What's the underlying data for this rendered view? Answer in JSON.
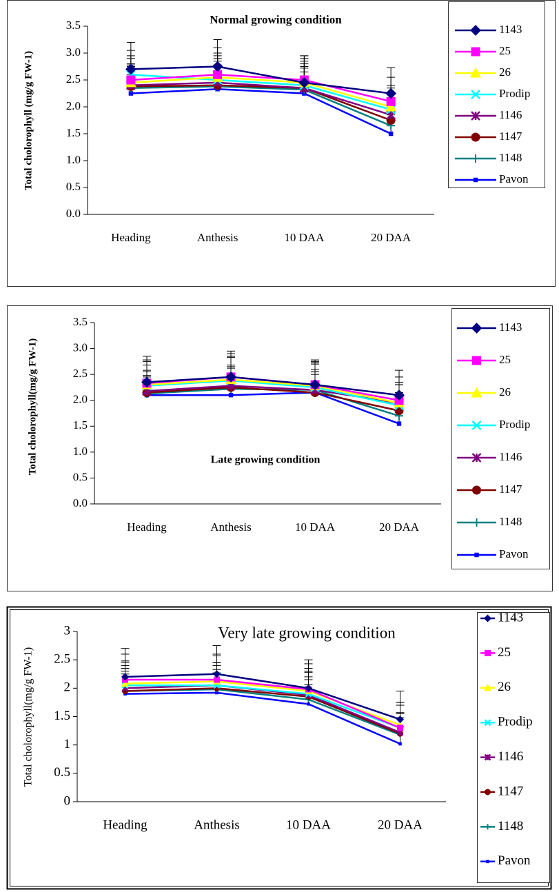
{
  "chart_data": [
    {
      "type": "line",
      "title": "Normal growing condition",
      "ylabel": "Total cholorophyll (mg/g FW-1)",
      "categories": [
        "Heading",
        "Anthesis",
        "10 DAA",
        "20 DAA"
      ],
      "ylim": [
        0,
        3.5
      ],
      "yticks": [
        {
          "value": 0,
          "label": "0.0"
        },
        0.5,
        {
          "value": 1,
          "label": "1.0"
        },
        1.5,
        {
          "value": 2,
          "label": "2.0"
        },
        2.5,
        {
          "value": 3,
          "label": "3.0"
        },
        3.5
      ],
      "series": [
        {
          "name": "1143",
          "color": "#000080",
          "marker": "diamond",
          "values": [
            2.7,
            2.75,
            2.45,
            2.25
          ],
          "errors": [
            0.5,
            0.5,
            0.5,
            0.48
          ]
        },
        {
          "name": "25",
          "color": "#ff00ff",
          "marker": "square",
          "values": [
            2.5,
            2.6,
            2.5,
            2.1
          ],
          "errors": [
            0.45,
            0.5,
            0.45,
            0.45
          ]
        },
        {
          "name": "26",
          "color": "#ffff00",
          "marker": "triangle",
          "values": [
            2.45,
            2.55,
            2.45,
            2.0
          ],
          "errors": [
            0.45,
            0.45,
            0.45,
            0.4
          ]
        },
        {
          "name": "Prodip",
          "color": "#00ffff",
          "marker": "x",
          "values": [
            2.6,
            2.5,
            2.4,
            1.95
          ],
          "errors": [
            0.45,
            0.45,
            0.45,
            0.4
          ]
        },
        {
          "name": "1146",
          "color": "#800080",
          "marker": "asterisk",
          "values": [
            2.4,
            2.45,
            2.35,
            1.85
          ],
          "errors": [
            0.4,
            0.45,
            0.45,
            0.4
          ]
        },
        {
          "name": "1147",
          "color": "#800000",
          "marker": "circle",
          "values": [
            2.38,
            2.4,
            2.35,
            1.75
          ],
          "errors": [
            0.4,
            0.45,
            0.4,
            0.4
          ]
        },
        {
          "name": "1148",
          "color": "#008080",
          "marker": "plus",
          "values": [
            2.35,
            2.38,
            2.32,
            1.65
          ],
          "errors": [
            0.4,
            0.4,
            0.4,
            0.35
          ]
        },
        {
          "name": "Pavon",
          "color": "#0000ff",
          "marker": "smallsquare",
          "values": [
            2.25,
            2.33,
            2.25,
            1.5
          ],
          "errors": [
            0.35,
            0.4,
            0.4,
            0.35
          ]
        }
      ]
    },
    {
      "type": "line",
      "title": "Late growing condition",
      "ylabel": "Total cholorophyll(mg/g FW-1)",
      "categories": [
        "Heading",
        "Anthesis",
        "10 DAA",
        "20 DAA"
      ],
      "ylim": [
        0,
        3.5
      ],
      "yticks": [
        {
          "value": 0,
          "label": "0.0"
        },
        0.5,
        {
          "value": 1,
          "label": "1.0"
        },
        1.5,
        {
          "value": 2,
          "label": "2.0"
        },
        2.5,
        {
          "value": 3,
          "label": "3.0"
        },
        3.5
      ],
      "series": [
        {
          "name": "1143",
          "color": "#000080",
          "marker": "diamond",
          "values": [
            2.35,
            2.45,
            2.3,
            2.1
          ],
          "errors": [
            0.5,
            0.5,
            0.48,
            0.48
          ]
        },
        {
          "name": "25",
          "color": "#ff00ff",
          "marker": "square",
          "values": [
            2.33,
            2.45,
            2.3,
            2.0
          ],
          "errors": [
            0.45,
            0.45,
            0.45,
            0.45
          ]
        },
        {
          "name": "26",
          "color": "#ffff00",
          "marker": "triangle",
          "values": [
            2.3,
            2.4,
            2.28,
            1.95
          ],
          "errors": [
            0.45,
            0.45,
            0.45,
            0.4
          ]
        },
        {
          "name": "Prodip",
          "color": "#00ffff",
          "marker": "x",
          "values": [
            2.28,
            2.38,
            2.25,
            1.9
          ],
          "errors": [
            0.4,
            0.45,
            0.45,
            0.4
          ]
        },
        {
          "name": "1146",
          "color": "#800080",
          "marker": "asterisk",
          "values": [
            2.18,
            2.28,
            2.2,
            1.95
          ],
          "errors": [
            0.4,
            0.4,
            0.4,
            0.35
          ]
        },
        {
          "name": "1147",
          "color": "#800000",
          "marker": "circle",
          "values": [
            2.15,
            2.25,
            2.15,
            1.8
          ],
          "errors": [
            0.4,
            0.4,
            0.4,
            0.35
          ]
        },
        {
          "name": "1148",
          "color": "#008080",
          "marker": "plus",
          "values": [
            2.13,
            2.22,
            2.2,
            1.7
          ],
          "errors": [
            0.35,
            0.4,
            0.35,
            0.35
          ]
        },
        {
          "name": "Pavon",
          "color": "#0000ff",
          "marker": "smallsquare",
          "values": [
            2.1,
            2.1,
            2.15,
            1.55
          ],
          "errors": [
            0.35,
            0.35,
            0.35,
            0.3
          ]
        }
      ]
    },
    {
      "type": "line",
      "title": "Very late growing condition",
      "ylabel": "Total cholorophyll(mg/g FW-1)",
      "categories": [
        "Heading",
        "Anthesis",
        "10 DAA",
        "20 DAA"
      ],
      "ylim": [
        0,
        3
      ],
      "yticks": [
        0,
        0.5,
        1,
        1.5,
        2,
        2.5,
        3
      ],
      "series": [
        {
          "name": "1143",
          "color": "#000080",
          "marker": "diamond",
          "values": [
            2.2,
            2.25,
            2.0,
            1.45
          ],
          "errors": [
            0.5,
            0.5,
            0.5,
            0.5
          ]
        },
        {
          "name": "25",
          "color": "#ff00ff",
          "marker": "square",
          "values": [
            2.15,
            2.15,
            1.98,
            1.3
          ],
          "errors": [
            0.45,
            0.45,
            0.45,
            0.45
          ]
        },
        {
          "name": "26",
          "color": "#ffff00",
          "marker": "triangle",
          "values": [
            2.08,
            2.12,
            1.95,
            1.35
          ],
          "errors": [
            0.4,
            0.45,
            0.4,
            0.4
          ]
        },
        {
          "name": "Prodip",
          "color": "#00ffff",
          "marker": "x",
          "values": [
            2.05,
            2.05,
            1.9,
            1.3
          ],
          "errors": [
            0.4,
            0.4,
            0.4,
            0.4
          ]
        },
        {
          "name": "1146",
          "color": "#800080",
          "marker": "asterisk",
          "values": [
            2.0,
            2.05,
            1.88,
            1.22
          ],
          "errors": [
            0.4,
            0.4,
            0.4,
            0.35
          ]
        },
        {
          "name": "1147",
          "color": "#800000",
          "marker": "circle",
          "values": [
            1.95,
            2.0,
            1.85,
            1.2
          ],
          "errors": [
            0.4,
            0.4,
            0.35,
            0.35
          ]
        },
        {
          "name": "1148",
          "color": "#008080",
          "marker": "plus",
          "values": [
            1.95,
            1.98,
            1.8,
            1.18
          ],
          "errors": [
            0.35,
            0.35,
            0.35,
            0.3
          ]
        },
        {
          "name": "Pavon",
          "color": "#0000ff",
          "marker": "smallsquare",
          "values": [
            1.9,
            1.92,
            1.72,
            1.02
          ],
          "errors": [
            0.35,
            0.35,
            0.35,
            0.3
          ]
        }
      ]
    }
  ]
}
